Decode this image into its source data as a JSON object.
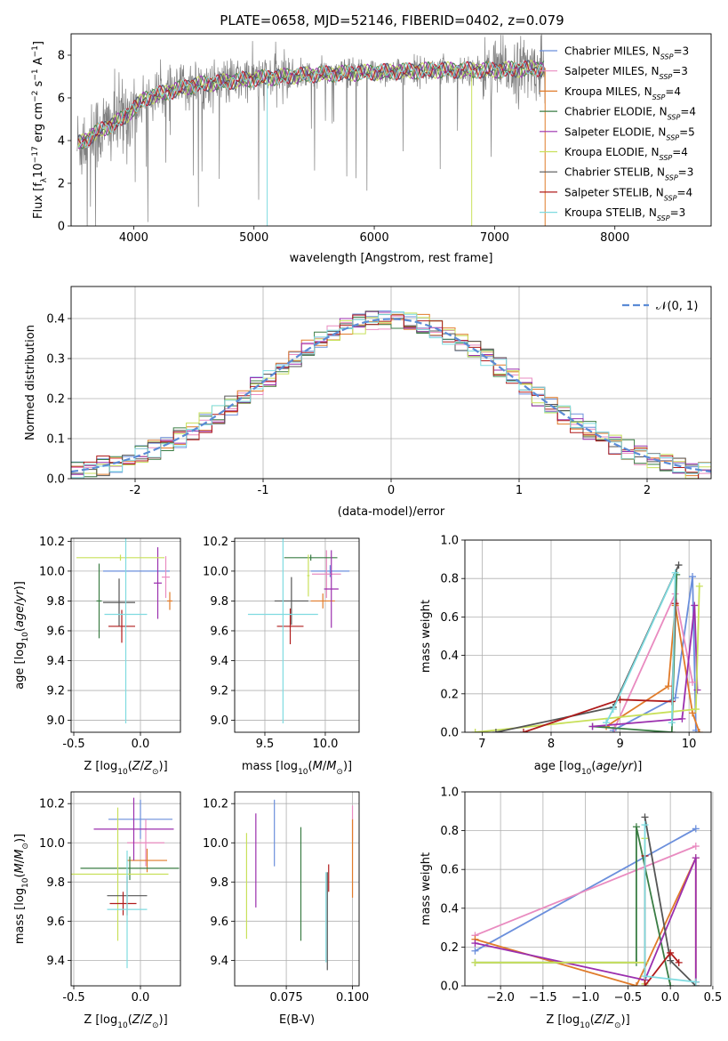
{
  "figure_title": "PLATE=0658, MJD=52146, FIBERID=0402, z=0.079",
  "colors": {
    "Chabrier MILES": "#6b8fdc",
    "Salpeter MILES": "#e98bc0",
    "Kroupa MILES": "#e07b2a",
    "Chabrier ELODIE": "#3a7d44",
    "Salpeter ELODIE": "#9b2fae",
    "Kroupa ELODIE": "#c8e05a",
    "Chabrier STELIB": "#555555",
    "Salpeter STELIB": "#b01c1c",
    "Kroupa STELIB": "#7fdbe0",
    "data": "#7f7f7f",
    "normal": "#5b8bd6"
  },
  "chart_data": [
    {
      "id": "spectrum",
      "type": "line",
      "title": "PLATE=0658, MJD=52146, FIBERID=0402, z=0.079",
      "xlabel": "wavelength [Angstrom, rest frame]",
      "ylabel": "Flux [f_λ 10^-17 erg cm^-2 s^-1 A^-1]",
      "xlim": [
        3480,
        8800
      ],
      "ylim": [
        0,
        9
      ],
      "xticks": [
        4000,
        5000,
        6000,
        7000,
        8000
      ],
      "yticks": [
        0,
        2,
        4,
        6,
        8
      ],
      "grid": false,
      "legend_position": "top-right",
      "legend": [
        {
          "name": "Chabrier MILES",
          "label": "Chabrier MILES, N",
          "sub": "SSP",
          "n": "=3"
        },
        {
          "name": "Salpeter MILES",
          "label": "Salpeter MILES, N",
          "sub": "SSP",
          "n": "=3"
        },
        {
          "name": "Kroupa MILES",
          "label": "Kroupa MILES, N",
          "sub": "SSP",
          "n": "=4"
        },
        {
          "name": "Chabrier ELODIE",
          "label": "Chabrier ELODIE, N",
          "sub": "SSP",
          "n": "=4"
        },
        {
          "name": "Salpeter ELODIE",
          "label": "Salpeter ELODIE, N",
          "sub": "SSP",
          "n": "=5"
        },
        {
          "name": "Kroupa ELODIE",
          "label": "Kroupa ELODIE, N",
          "sub": "SSP",
          "n": "=4"
        },
        {
          "name": "Chabrier STELIB",
          "label": "Chabrier STELIB, N",
          "sub": "SSP",
          "n": "=3"
        },
        {
          "name": "Salpeter STELIB",
          "label": "Salpeter STELIB, N",
          "sub": "SSP",
          "n": "=4"
        },
        {
          "name": "Kroupa STELIB",
          "label": "Kroupa STELIB, N",
          "sub": "SSP",
          "n": "=3"
        }
      ],
      "data_range": [
        3530,
        7420
      ],
      "continuum_anchors": [
        [
          3530,
          3.8
        ],
        [
          3700,
          4.4
        ],
        [
          3900,
          5.0
        ],
        [
          4100,
          6.0
        ],
        [
          4500,
          6.6
        ],
        [
          5000,
          6.9
        ],
        [
          5500,
          7.1
        ],
        [
          6000,
          7.2
        ],
        [
          6500,
          7.3
        ],
        [
          7000,
          7.3
        ],
        [
          7420,
          7.4
        ]
      ]
    },
    {
      "id": "residuals",
      "type": "histogram",
      "xlabel": "(data-model)/error",
      "ylabel": "Normed distribution",
      "xlim": [
        -2.5,
        2.5
      ],
      "ylim": [
        0,
        0.48
      ],
      "xticks": [
        -2,
        -1,
        0,
        1,
        2
      ],
      "yticks": [
        0.0,
        0.1,
        0.2,
        0.3,
        0.4
      ],
      "grid": true,
      "legend_position": "top-right",
      "legend_label": "𝒩(0, 1)",
      "bin_width": 0.1,
      "series": [
        "Chabrier MILES",
        "Salpeter MILES",
        "Kroupa MILES",
        "Chabrier ELODIE",
        "Salpeter ELODIE",
        "Kroupa ELODIE",
        "Chabrier STELIB",
        "Salpeter STELIB",
        "Kroupa STELIB"
      ]
    },
    {
      "id": "age_vs_Z",
      "type": "errorbar",
      "xlabel": "Z [log10(Z/Z⊙)]",
      "ylabel": "age  [log10(age/yr)]",
      "xlim": [
        -0.52,
        0.3
      ],
      "ylim": [
        8.92,
        10.22
      ],
      "xticks": [
        -0.5,
        0.0
      ],
      "yticks": [
        9.0,
        9.2,
        9.4,
        9.6,
        9.8,
        10.0,
        10.2
      ],
      "grid": true,
      "points": [
        {
          "name": "Chabrier MILES",
          "x": -0.03,
          "xerr": 0.25,
          "y": 10.0,
          "yerr": 0.0
        },
        {
          "name": "Salpeter MILES",
          "x": 0.19,
          "xerr": 0.03,
          "y": 9.96,
          "yerr": 0.14
        },
        {
          "name": "Kroupa MILES",
          "x": 0.22,
          "xerr": 0.02,
          "y": 9.8,
          "yerr": 0.06
        },
        {
          "name": "Chabrier ELODIE",
          "x": -0.31,
          "xerr": 0.02,
          "y": 9.8,
          "yerr": 0.25
        },
        {
          "name": "Salpeter ELODIE",
          "x": 0.13,
          "xerr": 0.03,
          "y": 9.92,
          "yerr": 0.24
        },
        {
          "name": "Kroupa ELODIE",
          "x": -0.15,
          "xerr": 0.33,
          "y": 10.09,
          "yerr": 0.02
        },
        {
          "name": "Chabrier STELIB",
          "x": -0.16,
          "xerr": 0.12,
          "y": 9.79,
          "yerr": 0.16
        },
        {
          "name": "Salpeter STELIB",
          "x": -0.14,
          "xerr": 0.1,
          "y": 9.63,
          "yerr": 0.11
        },
        {
          "name": "Kroupa STELIB",
          "x": -0.11,
          "xerr": 0.16,
          "y": 9.71,
          "yerr": 0.73
        }
      ]
    },
    {
      "id": "age_vs_mass",
      "type": "errorbar",
      "xlabel": "mass [log10(M/M⊙)]",
      "ylabel": "",
      "xlim": [
        9.25,
        10.28
      ],
      "ylim": [
        8.92,
        10.22
      ],
      "xticks": [
        9.5,
        10.0
      ],
      "yticks": [
        9.0,
        9.2,
        9.4,
        9.6,
        9.8,
        10.0,
        10.2
      ],
      "grid": true,
      "points": [
        {
          "name": "Chabrier MILES",
          "x": 10.04,
          "xerr": 0.16,
          "y": 10.0,
          "yerr": 0.04
        },
        {
          "name": "Salpeter MILES",
          "x": 10.01,
          "xerr": 0.12,
          "y": 9.98,
          "yerr": 0.16
        },
        {
          "name": "Kroupa MILES",
          "x": 9.98,
          "xerr": 0.1,
          "y": 9.8,
          "yerr": 0.05
        },
        {
          "name": "Chabrier ELODIE",
          "x": 9.88,
          "xerr": 0.22,
          "y": 10.09,
          "yerr": 0.02
        },
        {
          "name": "Salpeter ELODIE",
          "x": 10.05,
          "xerr": 0.06,
          "y": 9.88,
          "yerr": 0.26
        },
        {
          "name": "Kroupa ELODIE",
          "x": 9.86,
          "xerr": 0.01,
          "y": 9.97,
          "yerr": 0.14
        },
        {
          "name": "Chabrier STELIB",
          "x": 9.72,
          "xerr": 0.14,
          "y": 9.8,
          "yerr": 0.16
        },
        {
          "name": "Salpeter STELIB",
          "x": 9.71,
          "xerr": 0.11,
          "y": 9.63,
          "yerr": 0.12
        },
        {
          "name": "Kroupa STELIB",
          "x": 9.65,
          "xerr": 0.29,
          "y": 9.71,
          "yerr": 0.73
        }
      ]
    },
    {
      "id": "weight_vs_age",
      "type": "line",
      "xlabel": "age  [log10(age/yr)]",
      "ylabel": "mass weight",
      "xlim": [
        6.75,
        10.32
      ],
      "ylim": [
        0,
        1
      ],
      "xticks": [
        7,
        8,
        9,
        10
      ],
      "yticks": [
        0.0,
        0.2,
        0.4,
        0.6,
        0.8,
        1.0
      ],
      "grid": true,
      "series": [
        {
          "name": "Chabrier MILES",
          "x": [
            8.9,
            9.8,
            10.05,
            10.1
          ],
          "y": [
            0.01,
            0.18,
            0.81,
            0.01
          ]
        },
        {
          "name": "Salpeter MILES",
          "x": [
            8.92,
            9.8,
            10.05
          ],
          "y": [
            0.02,
            0.72,
            0.26
          ]
        },
        {
          "name": "Kroupa MILES",
          "x": [
            8.8,
            9.7,
            9.8,
            10.05,
            10.15
          ],
          "y": [
            0.03,
            0.24,
            0.66,
            0.1,
            0.0
          ]
        },
        {
          "name": "Chabrier ELODIE",
          "x": [
            8.6,
            9.75,
            9.82
          ],
          "y": [
            0.03,
            0.0,
            0.82
          ]
        },
        {
          "name": "Salpeter ELODIE",
          "x": [
            8.6,
            9.9,
            10.08,
            10.12
          ],
          "y": [
            0.03,
            0.07,
            0.66,
            0.22
          ]
        },
        {
          "name": "Kroupa ELODIE",
          "x": [
            6.9,
            10.1,
            10.15
          ],
          "y": [
            0.0,
            0.12,
            0.76
          ]
        },
        {
          "name": "Chabrier STELIB",
          "x": [
            7.2,
            8.9,
            9.85
          ],
          "y": [
            0.0,
            0.13,
            0.87
          ]
        },
        {
          "name": "Salpeter STELIB",
          "x": [
            7.6,
            9.0,
            9.75,
            9.8
          ],
          "y": [
            0.0,
            0.17,
            0.16,
            0.67
          ]
        },
        {
          "name": "Kroupa STELIB",
          "x": [
            8.8,
            8.9,
            9.8,
            9.75
          ],
          "y": [
            0.05,
            0.12,
            0.83,
            0.05
          ]
        }
      ]
    },
    {
      "id": "mass_vs_Z",
      "type": "errorbar",
      "xlabel": "Z [log10(Z/Z⊙)]",
      "ylabel": "mass [log10(M/M⊙)]",
      "xlim": [
        -0.52,
        0.3
      ],
      "ylim": [
        9.27,
        10.26
      ],
      "xticks": [
        -0.5,
        0.0
      ],
      "yticks": [
        9.4,
        9.6,
        9.8,
        10.0,
        10.2
      ],
      "grid": true,
      "points": [
        {
          "name": "Chabrier MILES",
          "x": 0.0,
          "xerr": 0.24,
          "y": 10.12,
          "yerr": 0.1
        },
        {
          "name": "Salpeter MILES",
          "x": 0.04,
          "xerr": 0.14,
          "y": 10.0,
          "yerr": 0.12
        },
        {
          "name": "Kroupa MILES",
          "x": 0.05,
          "xerr": 0.15,
          "y": 9.91,
          "yerr": 0.06
        },
        {
          "name": "Chabrier ELODIE",
          "x": -0.08,
          "xerr": 0.37,
          "y": 9.87,
          "yerr": 0.06
        },
        {
          "name": "Salpeter ELODIE",
          "x": -0.05,
          "xerr": 0.3,
          "y": 10.07,
          "yerr": 0.16
        },
        {
          "name": "Kroupa ELODIE",
          "x": -0.17,
          "xerr": 0.38,
          "y": 9.84,
          "yerr": 0.34
        },
        {
          "name": "Chabrier STELIB",
          "x": -0.1,
          "xerr": 0.15,
          "y": 9.73,
          "yerr": 0.1
        },
        {
          "name": "Salpeter STELIB",
          "x": -0.13,
          "xerr": 0.1,
          "y": 9.69,
          "yerr": 0.06
        },
        {
          "name": "Kroupa STELIB",
          "x": -0.1,
          "xerr": 0.15,
          "y": 9.66,
          "yerr": 0.3
        }
      ]
    },
    {
      "id": "mass_vs_ebv",
      "type": "errorbar",
      "xlabel": "E(B-V)",
      "ylabel": "",
      "xlim": [
        0.0555,
        0.1025
      ],
      "ylim": [
        9.27,
        10.26
      ],
      "xticks": [
        0.075,
        0.1
      ],
      "xtick_labels": [
        "0.075",
        "0.100"
      ],
      "yticks": [
        9.4,
        9.6,
        9.8,
        10.0,
        10.2
      ],
      "grid": true,
      "points": [
        {
          "name": "Chabrier MILES",
          "x": 0.0705,
          "xerr": 0.0,
          "y": 10.05,
          "yerr": 0.17
        },
        {
          "name": "Salpeter MILES",
          "x": 0.1,
          "xerr": 0.0,
          "y": 10.1,
          "yerr": 0.09
        },
        {
          "name": "Kroupa MILES",
          "x": 0.1,
          "xerr": 0.0,
          "y": 9.92,
          "yerr": 0.2
        },
        {
          "name": "Chabrier ELODIE",
          "x": 0.0805,
          "xerr": 0.0,
          "y": 9.79,
          "yerr": 0.29
        },
        {
          "name": "Salpeter ELODIE",
          "x": 0.0635,
          "xerr": 0.0,
          "y": 9.91,
          "yerr": 0.24
        },
        {
          "name": "Kroupa ELODIE",
          "x": 0.06,
          "xerr": 0.0,
          "y": 9.78,
          "yerr": 0.27
        },
        {
          "name": "Chabrier STELIB",
          "x": 0.0905,
          "xerr": 0.0,
          "y": 9.6,
          "yerr": 0.25
        },
        {
          "name": "Salpeter STELIB",
          "x": 0.091,
          "xerr": 0.0,
          "y": 9.82,
          "yerr": 0.07
        },
        {
          "name": "Kroupa STELIB",
          "x": 0.09,
          "xerr": 0.0,
          "y": 9.62,
          "yerr": 0.23
        }
      ]
    },
    {
      "id": "weight_vs_Z",
      "type": "line",
      "xlabel": "Z [log10(Z/Z⊙)]",
      "ylabel": "mass weight",
      "xlim": [
        -2.42,
        0.48
      ],
      "ylim": [
        0,
        1
      ],
      "xticks": [
        -2.0,
        -1.5,
        -1.0,
        -0.5,
        0.0,
        0.5
      ],
      "yticks": [
        0.0,
        0.2,
        0.4,
        0.6,
        0.8,
        1.0
      ],
      "grid": true,
      "series": [
        {
          "name": "Chabrier MILES",
          "x": [
            -2.3,
            0.3
          ],
          "y": [
            0.18,
            0.81
          ]
        },
        {
          "name": "Salpeter MILES",
          "x": [
            -2.3,
            0.3
          ],
          "y": [
            0.26,
            0.72
          ]
        },
        {
          "name": "Kroupa MILES",
          "x": [
            -2.3,
            -0.4,
            0.3,
            0.3
          ],
          "y": [
            0.24,
            0.0,
            0.66,
            0.02
          ]
        },
        {
          "name": "Chabrier ELODIE",
          "x": [
            -2.3,
            -0.4,
            -0.4,
            0.0
          ],
          "y": [
            0.12,
            0.12,
            0.82,
            0.0
          ]
        },
        {
          "name": "Salpeter ELODIE",
          "x": [
            -2.3,
            -0.3,
            0.3,
            0.3
          ],
          "y": [
            0.22,
            0.03,
            0.66,
            0.02
          ]
        },
        {
          "name": "Kroupa ELODIE",
          "x": [
            -2.3,
            -0.3,
            -0.3,
            -0.3
          ],
          "y": [
            0.12,
            0.12,
            0.76,
            0.01
          ]
        },
        {
          "name": "Chabrier STELIB",
          "x": [
            -0.3,
            0.0,
            0.3
          ],
          "y": [
            0.87,
            0.13,
            0.0
          ]
        },
        {
          "name": "Salpeter STELIB",
          "x": [
            -0.3,
            -0.3,
            0.0,
            0.1
          ],
          "y": [
            0.67,
            0.0,
            0.17,
            0.12
          ]
        },
        {
          "name": "Kroupa STELIB",
          "x": [
            -0.3,
            -0.3,
            0.3
          ],
          "y": [
            0.83,
            0.05,
            0.02
          ]
        }
      ]
    }
  ]
}
